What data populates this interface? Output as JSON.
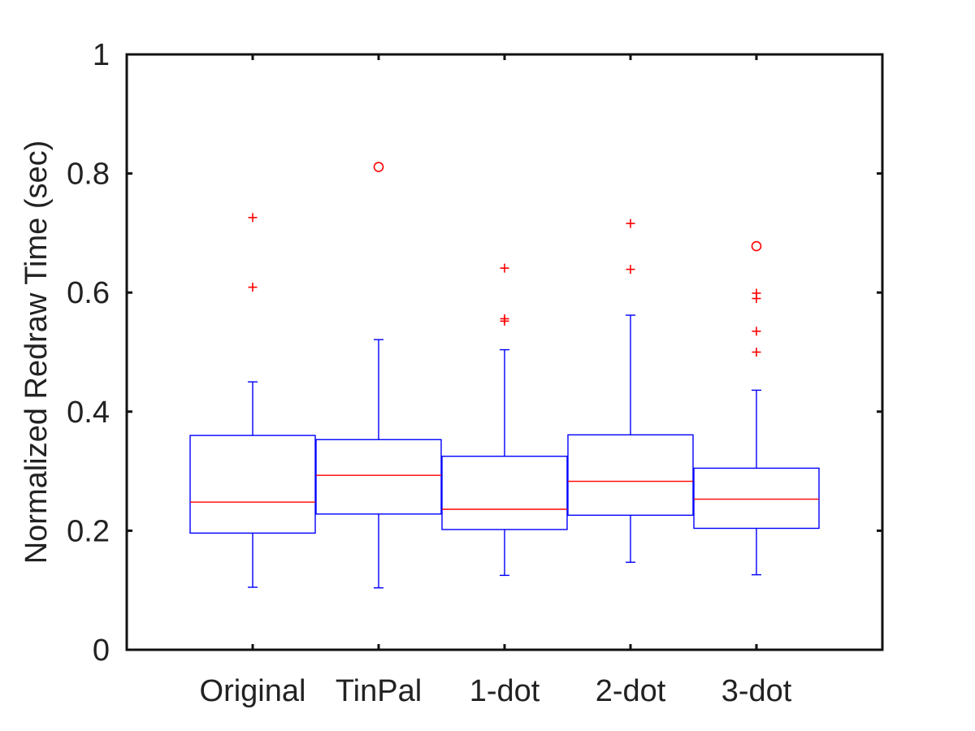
{
  "chart_data": {
    "type": "box",
    "ylabel": "Normalized Redraw Time (sec)",
    "xlabel": "",
    "ylim": [
      0,
      1
    ],
    "yticks": [
      "0",
      "0.2",
      "0.4",
      "0.6",
      "0.8",
      "1"
    ],
    "ytick_values": [
      0,
      0.2,
      0.4,
      0.6,
      0.8,
      1
    ],
    "grid": false,
    "colors": {
      "box": "#0000ff",
      "median": "#ff0000",
      "outlier": "#ff0000",
      "axis": "#111111"
    },
    "categories": [
      "Original",
      "TinPal",
      "1-dot",
      "2-dot",
      "3-dot"
    ],
    "boxes": [
      {
        "category": "Original",
        "whisker_low": 0.105,
        "q1": 0.196,
        "median": 0.248,
        "q3": 0.36,
        "whisker_high": 0.45,
        "outliers_plus": [
          0.726,
          0.609
        ],
        "outliers_circle": []
      },
      {
        "category": "TinPal",
        "whisker_low": 0.104,
        "q1": 0.228,
        "median": 0.293,
        "q3": 0.353,
        "whisker_high": 0.521,
        "outliers_plus": [],
        "outliers_circle": [
          0.811
        ]
      },
      {
        "category": "1-dot",
        "whisker_low": 0.125,
        "q1": 0.202,
        "median": 0.236,
        "q3": 0.325,
        "whisker_high": 0.504,
        "outliers_plus": [
          0.641,
          0.556,
          0.552
        ],
        "outliers_circle": []
      },
      {
        "category": "2-dot",
        "whisker_low": 0.147,
        "q1": 0.226,
        "median": 0.283,
        "q3": 0.361,
        "whisker_high": 0.562,
        "outliers_plus": [
          0.716,
          0.639
        ],
        "outliers_circle": []
      },
      {
        "category": "3-dot",
        "whisker_low": 0.126,
        "q1": 0.204,
        "median": 0.253,
        "q3": 0.305,
        "whisker_high": 0.436,
        "outliers_plus": [
          0.599,
          0.59,
          0.535,
          0.5
        ],
        "outliers_circle": [
          0.678
        ]
      }
    ]
  }
}
